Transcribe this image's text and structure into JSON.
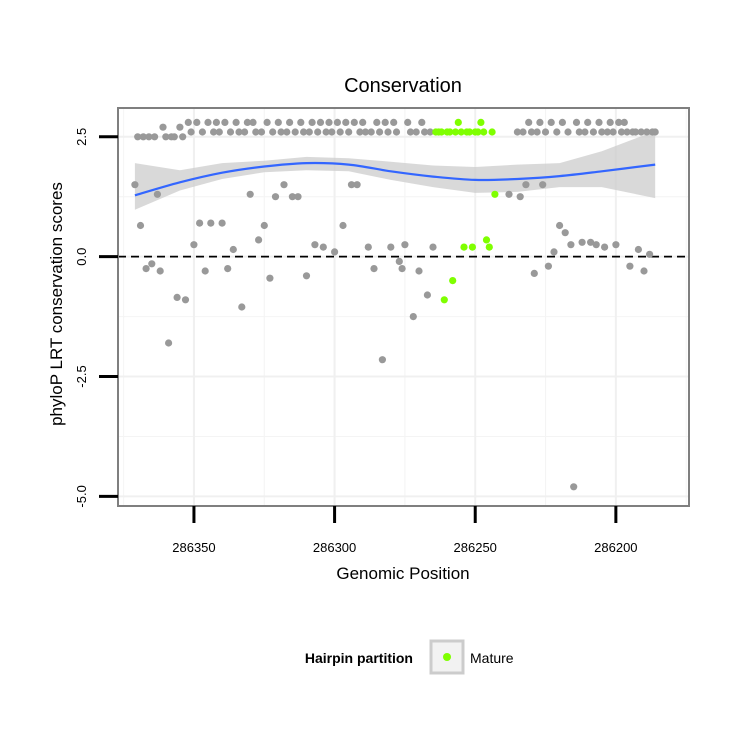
{
  "chart_data": {
    "type": "scatter",
    "title": "Conservation",
    "xlabel": "Genomic Position",
    "ylabel": "phyloP LRT conservation scores",
    "x_reversed": true,
    "xlim": [
      286377,
      286174
    ],
    "ylim": [
      -5.2,
      3.1
    ],
    "x_ticks": [
      286350,
      286300,
      286250,
      286200
    ],
    "x_tick_labels": [
      "286350",
      "286300",
      "286250",
      "286200"
    ],
    "y_ticks": [
      -5.0,
      -2.5,
      0.0,
      2.5
    ],
    "y_tick_labels": [
      "-5.0",
      "-2.5",
      "0.0",
      "2.5"
    ],
    "grid": true,
    "reference_line": {
      "y": 0,
      "style": "dashed",
      "color": "#000000"
    },
    "legend": {
      "title": "Hairpin partition",
      "position": "bottom",
      "entries": [
        {
          "label": "Mature",
          "color": "#7FFF00"
        }
      ]
    },
    "colors": {
      "other": "#999999",
      "mature": "#7FFF00",
      "smooth": "#3366FF",
      "band": "#CCCCCC",
      "panel_border": "#7F7F7F"
    },
    "series": [
      {
        "color": "#999999",
        "points": [
          [
            286371,
            1.5
          ],
          [
            286370,
            2.5
          ],
          [
            286369,
            0.65
          ],
          [
            286368,
            2.5
          ],
          [
            286367,
            -0.25
          ],
          [
            286366,
            2.5
          ],
          [
            286365,
            -0.15
          ],
          [
            286364,
            2.5
          ],
          [
            286363,
            1.3
          ],
          [
            286362,
            -0.3
          ],
          [
            286361,
            2.7
          ],
          [
            286360,
            2.5
          ],
          [
            286359,
            -1.8
          ],
          [
            286358,
            2.5
          ],
          [
            286357,
            2.5
          ],
          [
            286356,
            -0.85
          ],
          [
            286355,
            2.7
          ],
          [
            286354,
            2.5
          ],
          [
            286353,
            -0.9
          ],
          [
            286352,
            2.8
          ],
          [
            286351,
            2.6
          ],
          [
            286350,
            0.25
          ],
          [
            286349,
            2.8
          ],
          [
            286348,
            0.7
          ],
          [
            286347,
            2.6
          ],
          [
            286346,
            -0.3
          ],
          [
            286345,
            2.8
          ],
          [
            286344,
            0.7
          ],
          [
            286343,
            2.6
          ],
          [
            286342,
            2.8
          ],
          [
            286341,
            2.6
          ],
          [
            286340,
            0.7
          ],
          [
            286339,
            2.8
          ],
          [
            286338,
            -0.25
          ],
          [
            286337,
            2.6
          ],
          [
            286336,
            0.15
          ],
          [
            286335,
            2.8
          ],
          [
            286334,
            2.6
          ],
          [
            286333,
            -1.05
          ],
          [
            286332,
            2.6
          ],
          [
            286331,
            2.8
          ],
          [
            286330,
            1.3
          ],
          [
            286329,
            2.8
          ],
          [
            286328,
            2.6
          ],
          [
            286327,
            0.35
          ],
          [
            286326,
            2.6
          ],
          [
            286325,
            0.65
          ],
          [
            286324,
            2.8
          ],
          [
            286323,
            -0.45
          ],
          [
            286322,
            2.6
          ],
          [
            286321,
            1.25
          ],
          [
            286320,
            2.8
          ],
          [
            286319,
            2.6
          ],
          [
            286318,
            1.5
          ],
          [
            286317,
            2.6
          ],
          [
            286316,
            2.8
          ],
          [
            286315,
            1.25
          ],
          [
            286314,
            2.6
          ],
          [
            286313,
            1.25
          ],
          [
            286312,
            2.8
          ],
          [
            286311,
            2.6
          ],
          [
            286310,
            -0.4
          ],
          [
            286309,
            2.6
          ],
          [
            286308,
            2.8
          ],
          [
            286307,
            0.25
          ],
          [
            286306,
            2.6
          ],
          [
            286305,
            2.8
          ],
          [
            286304,
            0.2
          ],
          [
            286303,
            2.6
          ],
          [
            286302,
            2.8
          ],
          [
            286301,
            2.6
          ],
          [
            286300,
            0.1
          ],
          [
            286299,
            2.8
          ],
          [
            286298,
            2.6
          ],
          [
            286297,
            0.65
          ],
          [
            286296,
            2.8
          ],
          [
            286295,
            2.6
          ],
          [
            286294,
            1.5
          ],
          [
            286293,
            2.8
          ],
          [
            286292,
            1.5
          ],
          [
            286291,
            2.6
          ],
          [
            286290,
            2.8
          ],
          [
            286289,
            2.6
          ],
          [
            286288,
            0.2
          ],
          [
            286287,
            2.6
          ],
          [
            286286,
            -0.25
          ],
          [
            286285,
            2.8
          ],
          [
            286284,
            2.6
          ],
          [
            286283,
            -2.15
          ],
          [
            286282,
            2.8
          ],
          [
            286281,
            2.6
          ],
          [
            286280,
            0.2
          ],
          [
            286279,
            2.8
          ],
          [
            286278,
            2.6
          ],
          [
            286277,
            -0.1
          ],
          [
            286276,
            -0.25
          ],
          [
            286275,
            0.25
          ],
          [
            286274,
            2.8
          ],
          [
            286273,
            2.6
          ],
          [
            286272,
            -1.25
          ],
          [
            286271,
            2.6
          ],
          [
            286270,
            -0.3
          ],
          [
            286269,
            2.8
          ],
          [
            286268,
            2.6
          ],
          [
            286267,
            -0.8
          ],
          [
            286266,
            2.6
          ],
          [
            286265,
            0.2
          ],
          [
            286238,
            1.3
          ],
          [
            286235,
            2.6
          ],
          [
            286234,
            1.25
          ],
          [
            286233,
            2.6
          ],
          [
            286232,
            1.5
          ],
          [
            286231,
            2.8
          ],
          [
            286230,
            2.6
          ],
          [
            286229,
            -0.35
          ],
          [
            286228,
            2.6
          ],
          [
            286227,
            2.8
          ],
          [
            286226,
            1.5
          ],
          [
            286225,
            2.6
          ],
          [
            286224,
            -0.2
          ],
          [
            286223,
            2.8
          ],
          [
            286222,
            0.1
          ],
          [
            286221,
            2.6
          ],
          [
            286220,
            0.65
          ],
          [
            286219,
            2.8
          ],
          [
            286218,
            0.5
          ],
          [
            286217,
            2.6
          ],
          [
            286216,
            0.25
          ],
          [
            286215,
            -4.8
          ],
          [
            286214,
            2.8
          ],
          [
            286213,
            2.6
          ],
          [
            286212,
            0.3
          ],
          [
            286211,
            2.6
          ],
          [
            286210,
            2.8
          ],
          [
            286209,
            0.3
          ],
          [
            286208,
            2.6
          ],
          [
            286207,
            0.25
          ],
          [
            286206,
            2.8
          ],
          [
            286205,
            2.6
          ],
          [
            286204,
            0.2
          ],
          [
            286203,
            2.6
          ],
          [
            286202,
            2.8
          ],
          [
            286201,
            2.6
          ],
          [
            286200,
            0.25
          ],
          [
            286199,
            2.8
          ],
          [
            286198,
            2.6
          ],
          [
            286197,
            2.8
          ],
          [
            286196,
            2.6
          ],
          [
            286195,
            -0.2
          ],
          [
            286194,
            2.6
          ],
          [
            286193,
            2.6
          ],
          [
            286192,
            0.15
          ],
          [
            286191,
            2.6
          ],
          [
            286190,
            -0.3
          ],
          [
            286189,
            2.6
          ],
          [
            286188,
            0.05
          ],
          [
            286187,
            2.6
          ],
          [
            286186,
            2.6
          ]
        ]
      },
      {
        "name": "Mature",
        "color": "#7FFF00",
        "points": [
          [
            286264,
            2.6
          ],
          [
            286263,
            2.6
          ],
          [
            286262,
            2.6
          ],
          [
            286261,
            -0.9
          ],
          [
            286260,
            2.6
          ],
          [
            286259,
            2.6
          ],
          [
            286258,
            -0.5
          ],
          [
            286257,
            2.6
          ],
          [
            286256,
            2.8
          ],
          [
            286255,
            2.6
          ],
          [
            286254,
            0.2
          ],
          [
            286253,
            2.6
          ],
          [
            286252,
            2.6
          ],
          [
            286251,
            0.2
          ],
          [
            286250,
            2.6
          ],
          [
            286249,
            2.6
          ],
          [
            286248,
            2.8
          ],
          [
            286247,
            2.6
          ],
          [
            286246,
            0.35
          ],
          [
            286245,
            0.2
          ],
          [
            286244,
            2.6
          ],
          [
            286243,
            1.3
          ]
        ]
      }
    ],
    "smooth_curve": {
      "x": [
        286371,
        286355,
        286340,
        286325,
        286310,
        286295,
        286280,
        286265,
        286250,
        286235,
        286220,
        286205,
        286186
      ],
      "y": [
        1.28,
        1.55,
        1.75,
        1.88,
        1.95,
        1.92,
        1.78,
        1.67,
        1.6,
        1.62,
        1.68,
        1.78,
        1.92
      ],
      "band_low": [
        0.98,
        1.38,
        1.62,
        1.76,
        1.8,
        1.78,
        1.6,
        1.45,
        1.33,
        1.35,
        1.45,
        1.45,
        1.22
      ],
      "band_high": [
        1.95,
        1.8,
        1.95,
        2.0,
        2.08,
        2.05,
        1.98,
        1.9,
        1.87,
        1.92,
        1.95,
        2.2,
        2.62
      ]
    }
  }
}
